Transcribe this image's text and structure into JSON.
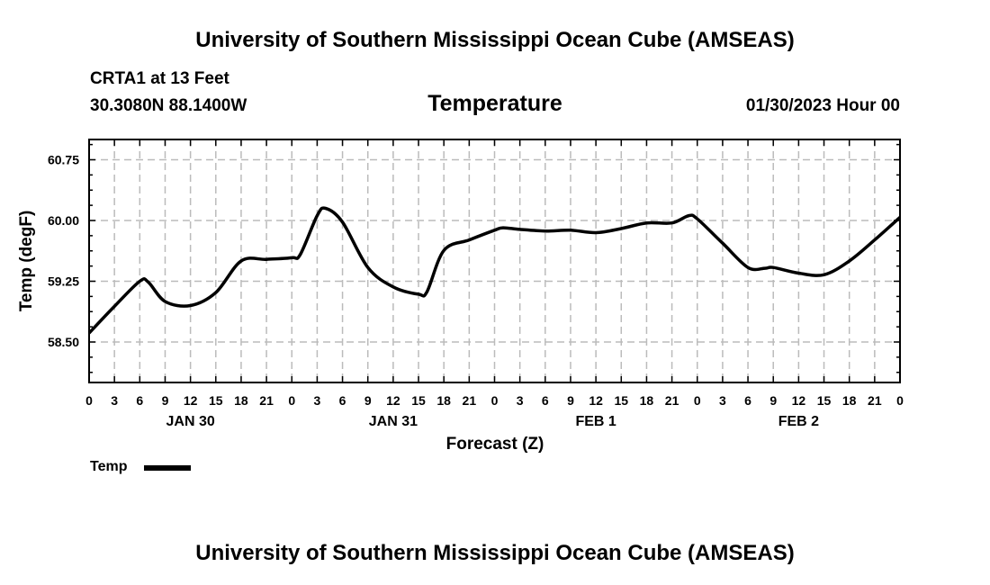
{
  "header": {
    "title": "University of Southern Mississippi Ocean Cube (AMSEAS)",
    "station": "CRTA1 at 13 Feet",
    "location": "30.3080N  88.1400W",
    "variable": "Temperature",
    "init_time": "01/30/2023 Hour 00"
  },
  "footer": {
    "title": "University of Southern Mississippi Ocean Cube (AMSEAS)"
  },
  "chart_data": {
    "type": "line",
    "title": "Temperature",
    "xlabel": "Forecast (Z)",
    "ylabel": "Temp (degF)",
    "xlim": [
      0,
      96
    ],
    "ylim": [
      58.0,
      61.0
    ],
    "grid": true,
    "y_ticks": [
      58.5,
      59.25,
      60.0,
      60.75
    ],
    "y_tick_labels": [
      "58.50",
      "59.25",
      "60.00",
      "60.75"
    ],
    "x_ticks": [
      0,
      3,
      6,
      9,
      12,
      15,
      18,
      21,
      24,
      27,
      30,
      33,
      36,
      39,
      42,
      45,
      48,
      51,
      54,
      57,
      60,
      63,
      66,
      69,
      72,
      75,
      78,
      81,
      84,
      87,
      90,
      93,
      96
    ],
    "x_tick_labels": [
      "0",
      "3",
      "6",
      "9",
      "12",
      "15",
      "18",
      "21",
      "0",
      "3",
      "6",
      "9",
      "12",
      "15",
      "18",
      "21",
      "0",
      "3",
      "6",
      "9",
      "12",
      "15",
      "18",
      "21",
      "0",
      "3",
      "6",
      "9",
      "12",
      "15",
      "18",
      "21",
      "0"
    ],
    "day_labels": [
      {
        "hour": 12,
        "label": "JAN 30"
      },
      {
        "hour": 36,
        "label": "JAN 31"
      },
      {
        "hour": 60,
        "label": "FEB 1"
      },
      {
        "hour": 84,
        "label": "FEB 2"
      }
    ],
    "legend": {
      "position": "bottom-left",
      "entries": [
        "Temp"
      ]
    },
    "series": [
      {
        "name": "Temp",
        "color": "#000000",
        "x": [
          0,
          3,
          6,
          7,
          9,
          12,
          15,
          18,
          21,
          24,
          25,
          27,
          28,
          30,
          33,
          36,
          39,
          40,
          42,
          45,
          48,
          49,
          51,
          54,
          57,
          60,
          63,
          66,
          69,
          71,
          72,
          75,
          78,
          80,
          81,
          84,
          87,
          90,
          93,
          96
        ],
        "values": [
          58.61,
          58.94,
          59.25,
          59.24,
          59.0,
          58.95,
          59.11,
          59.5,
          59.52,
          59.54,
          59.58,
          60.06,
          60.15,
          59.98,
          59.42,
          59.18,
          59.09,
          59.12,
          59.63,
          59.76,
          59.88,
          59.91,
          59.89,
          59.87,
          59.88,
          59.85,
          59.9,
          59.97,
          59.97,
          60.06,
          60.02,
          59.72,
          59.42,
          59.41,
          59.42,
          59.35,
          59.33,
          59.5,
          59.76,
          60.04
        ]
      }
    ]
  }
}
